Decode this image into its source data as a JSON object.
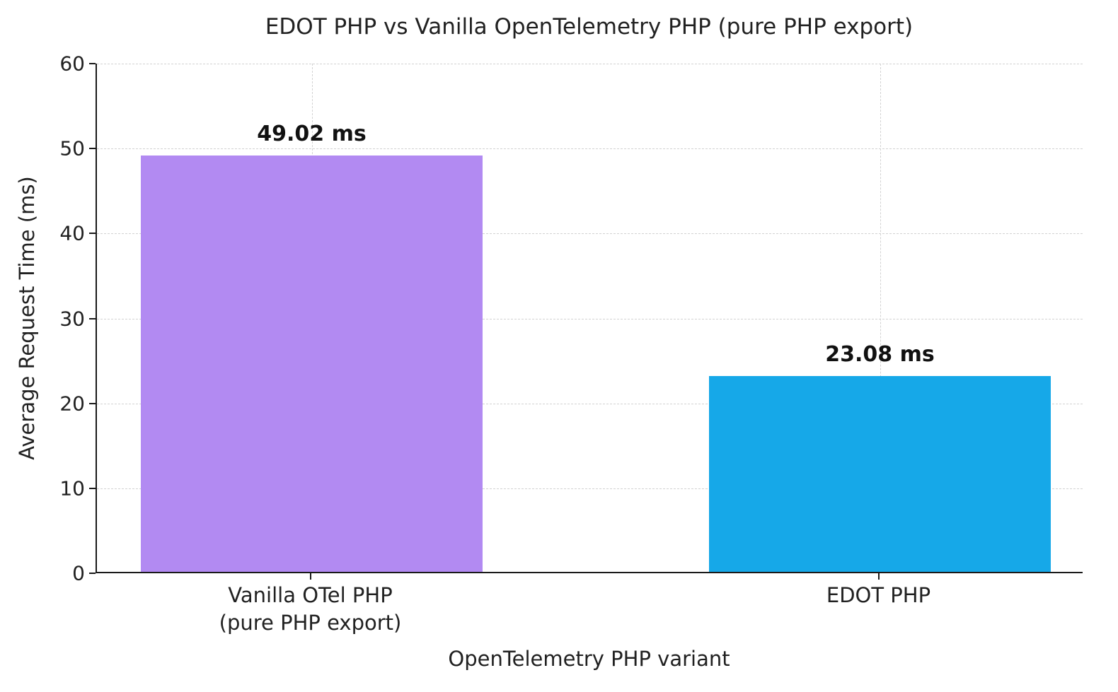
{
  "chart_data": {
    "type": "bar",
    "title": "EDOT PHP vs Vanilla OpenTelemetry PHP (pure PHP export)",
    "xlabel": "OpenTelemetry PHP variant",
    "ylabel": "Average Request Time (ms)",
    "categories": [
      "Vanilla OTel PHP\n(pure PHP export)",
      "EDOT PHP"
    ],
    "values": [
      49.02,
      23.08
    ],
    "value_labels": [
      "49.02 ms",
      "23.08 ms"
    ],
    "bar_colors": [
      "#b28af2",
      "#16a8e8"
    ],
    "ylim": [
      0,
      60
    ],
    "yticks": [
      0,
      10,
      20,
      30,
      40,
      50,
      60
    ],
    "grid": "dashed",
    "legend": "none"
  }
}
